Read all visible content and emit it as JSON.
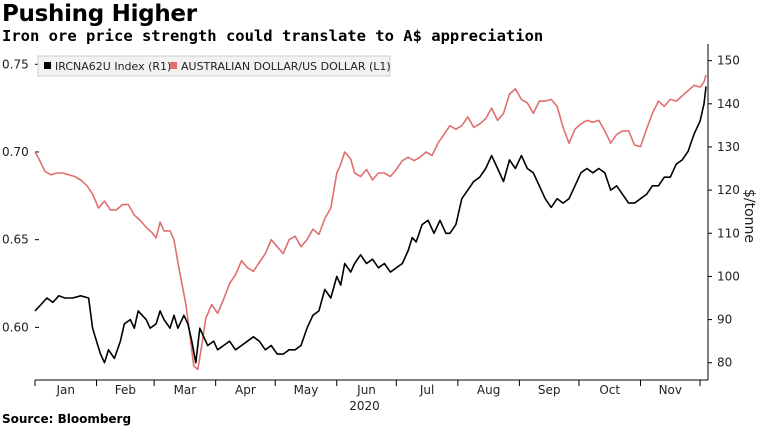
{
  "title": "Pushing Higher",
  "subtitle": "Iron ore price strength could translate to A$ appreciation",
  "source": "Source: Bloomberg",
  "colors": {
    "iron_ore": "#000000",
    "aud": "#e07070"
  },
  "chart_data": {
    "type": "line",
    "title": "Pushing Higher",
    "subtitle": "Iron ore price strength could translate to A$ appreciation",
    "xlabel": "2020",
    "months": [
      "Jan",
      "Feb",
      "Mar",
      "Apr",
      "May",
      "Jun",
      "Jul",
      "Aug",
      "Sep",
      "Oct",
      "Nov"
    ],
    "left_axis": {
      "ylim": [
        0.57,
        0.757
      ],
      "ticks": [
        "0.60",
        "0.65",
        "0.70",
        "0.75"
      ],
      "label": ""
    },
    "right_axis": {
      "ylim": [
        76,
        152
      ],
      "ticks": [
        "80",
        "90",
        "100",
        "110",
        "120",
        "130",
        "140",
        "150"
      ],
      "label": "$/tonne"
    },
    "grid": false,
    "legend_position": "top-left",
    "series": [
      {
        "name": "IRCNA62U Index (R1)",
        "axis": "right",
        "color": "#000000",
        "points": [
          [
            "2020-01-01",
            92
          ],
          [
            "2020-01-04",
            93.5
          ],
          [
            "2020-01-07",
            95
          ],
          [
            "2020-01-10",
            94
          ],
          [
            "2020-01-13",
            95.5
          ],
          [
            "2020-01-16",
            95
          ],
          [
            "2020-01-20",
            95
          ],
          [
            "2020-01-24",
            95.5
          ],
          [
            "2020-01-28",
            95
          ],
          [
            "2020-01-30",
            88
          ],
          [
            "2020-02-01",
            85
          ],
          [
            "2020-02-03",
            82
          ],
          [
            "2020-02-05",
            80
          ],
          [
            "2020-02-07",
            83
          ],
          [
            "2020-02-10",
            81
          ],
          [
            "2020-02-13",
            85
          ],
          [
            "2020-02-15",
            89
          ],
          [
            "2020-02-18",
            90
          ],
          [
            "2020-02-20",
            88
          ],
          [
            "2020-02-22",
            92
          ],
          [
            "2020-02-24",
            91
          ],
          [
            "2020-02-26",
            90
          ],
          [
            "2020-02-28",
            88
          ],
          [
            "2020-03-02",
            89
          ],
          [
            "2020-03-04",
            92
          ],
          [
            "2020-03-06",
            90
          ],
          [
            "2020-03-09",
            88
          ],
          [
            "2020-03-11",
            91
          ],
          [
            "2020-03-13",
            88
          ],
          [
            "2020-03-16",
            91
          ],
          [
            "2020-03-18",
            89
          ],
          [
            "2020-03-20",
            85
          ],
          [
            "2020-03-22",
            80
          ],
          [
            "2020-03-24",
            88
          ],
          [
            "2020-03-26",
            86
          ],
          [
            "2020-03-28",
            84
          ],
          [
            "2020-03-31",
            85
          ],
          [
            "2020-04-02",
            83
          ],
          [
            "2020-04-05",
            84
          ],
          [
            "2020-04-08",
            85
          ],
          [
            "2020-04-11",
            83
          ],
          [
            "2020-04-14",
            84
          ],
          [
            "2020-04-17",
            85
          ],
          [
            "2020-04-20",
            86
          ],
          [
            "2020-04-23",
            85
          ],
          [
            "2020-04-26",
            83
          ],
          [
            "2020-04-29",
            84
          ],
          [
            "2020-05-02",
            82
          ],
          [
            "2020-05-05",
            82
          ],
          [
            "2020-05-08",
            83
          ],
          [
            "2020-05-11",
            83
          ],
          [
            "2020-05-14",
            84
          ],
          [
            "2020-05-17",
            88
          ],
          [
            "2020-05-20",
            91
          ],
          [
            "2020-05-23",
            92
          ],
          [
            "2020-05-26",
            97
          ],
          [
            "2020-05-29",
            95
          ],
          [
            "2020-06-01",
            100
          ],
          [
            "2020-06-03",
            98
          ],
          [
            "2020-06-05",
            103
          ],
          [
            "2020-06-08",
            101
          ],
          [
            "2020-06-10",
            103
          ],
          [
            "2020-06-13",
            105
          ],
          [
            "2020-06-16",
            103
          ],
          [
            "2020-06-19",
            104
          ],
          [
            "2020-06-22",
            102
          ],
          [
            "2020-06-25",
            103
          ],
          [
            "2020-06-28",
            101
          ],
          [
            "2020-07-01",
            102
          ],
          [
            "2020-07-04",
            103
          ],
          [
            "2020-07-07",
            106
          ],
          [
            "2020-07-09",
            109
          ],
          [
            "2020-07-11",
            108
          ],
          [
            "2020-07-14",
            112
          ],
          [
            "2020-07-17",
            113
          ],
          [
            "2020-07-20",
            110
          ],
          [
            "2020-07-23",
            113
          ],
          [
            "2020-07-26",
            110
          ],
          [
            "2020-07-28",
            110
          ],
          [
            "2020-07-31",
            112
          ],
          [
            "2020-08-03",
            118
          ],
          [
            "2020-08-06",
            120
          ],
          [
            "2020-08-09",
            122
          ],
          [
            "2020-08-12",
            123
          ],
          [
            "2020-08-15",
            125
          ],
          [
            "2020-08-18",
            128
          ],
          [
            "2020-08-21",
            125
          ],
          [
            "2020-08-24",
            122
          ],
          [
            "2020-08-27",
            127
          ],
          [
            "2020-08-30",
            125
          ],
          [
            "2020-09-02",
            128
          ],
          [
            "2020-09-05",
            125
          ],
          [
            "2020-09-08",
            124
          ],
          [
            "2020-09-11",
            121
          ],
          [
            "2020-09-14",
            118
          ],
          [
            "2020-09-17",
            116
          ],
          [
            "2020-09-20",
            118
          ],
          [
            "2020-09-23",
            117
          ],
          [
            "2020-09-26",
            118
          ],
          [
            "2020-09-29",
            121
          ],
          [
            "2020-10-02",
            124
          ],
          [
            "2020-10-05",
            125
          ],
          [
            "2020-10-08",
            124
          ],
          [
            "2020-10-11",
            125
          ],
          [
            "2020-10-14",
            124
          ],
          [
            "2020-10-17",
            120
          ],
          [
            "2020-10-20",
            121
          ],
          [
            "2020-10-23",
            119
          ],
          [
            "2020-10-26",
            117
          ],
          [
            "2020-10-29",
            117
          ],
          [
            "2020-11-01",
            118
          ],
          [
            "2020-11-04",
            119
          ],
          [
            "2020-11-07",
            121
          ],
          [
            "2020-11-10",
            121
          ],
          [
            "2020-11-13",
            123
          ],
          [
            "2020-11-16",
            123
          ],
          [
            "2020-11-19",
            126
          ],
          [
            "2020-11-22",
            127
          ],
          [
            "2020-11-25",
            129
          ],
          [
            "2020-11-28",
            133
          ],
          [
            "2020-12-01",
            136
          ],
          [
            "2020-12-03",
            140
          ],
          [
            "2020-12-04",
            144
          ]
        ]
      },
      {
        "name": "AUSTRALIAN DOLLAR/US DOLLAR (L1)",
        "axis": "left",
        "color": "#e07070",
        "points": [
          [
            "2020-01-01",
            0.7
          ],
          [
            "2020-01-03",
            0.696
          ],
          [
            "2020-01-06",
            0.689
          ],
          [
            "2020-01-09",
            0.687
          ],
          [
            "2020-01-12",
            0.688
          ],
          [
            "2020-01-15",
            0.688
          ],
          [
            "2020-01-18",
            0.687
          ],
          [
            "2020-01-21",
            0.686
          ],
          [
            "2020-01-24",
            0.684
          ],
          [
            "2020-01-27",
            0.681
          ],
          [
            "2020-01-30",
            0.676
          ],
          [
            "2020-02-02",
            0.668
          ],
          [
            "2020-02-05",
            0.672
          ],
          [
            "2020-02-08",
            0.667
          ],
          [
            "2020-02-11",
            0.667
          ],
          [
            "2020-02-14",
            0.67
          ],
          [
            "2020-02-17",
            0.67
          ],
          [
            "2020-02-20",
            0.664
          ],
          [
            "2020-02-23",
            0.661
          ],
          [
            "2020-02-26",
            0.657
          ],
          [
            "2020-02-29",
            0.654
          ],
          [
            "2020-03-02",
            0.651
          ],
          [
            "2020-03-04",
            0.66
          ],
          [
            "2020-03-06",
            0.655
          ],
          [
            "2020-03-09",
            0.655
          ],
          [
            "2020-03-11",
            0.65
          ],
          [
            "2020-03-13",
            0.637
          ],
          [
            "2020-03-15",
            0.625
          ],
          [
            "2020-03-17",
            0.613
          ],
          [
            "2020-03-19",
            0.596
          ],
          [
            "2020-03-21",
            0.578
          ],
          [
            "2020-03-23",
            0.576
          ],
          [
            "2020-03-25",
            0.59
          ],
          [
            "2020-03-27",
            0.605
          ],
          [
            "2020-03-30",
            0.613
          ],
          [
            "2020-04-02",
            0.608
          ],
          [
            "2020-04-05",
            0.616
          ],
          [
            "2020-04-08",
            0.625
          ],
          [
            "2020-04-11",
            0.63
          ],
          [
            "2020-04-14",
            0.638
          ],
          [
            "2020-04-17",
            0.634
          ],
          [
            "2020-04-20",
            0.632
          ],
          [
            "2020-04-23",
            0.637
          ],
          [
            "2020-04-26",
            0.642
          ],
          [
            "2020-04-29",
            0.65
          ],
          [
            "2020-05-02",
            0.646
          ],
          [
            "2020-05-05",
            0.642
          ],
          [
            "2020-05-08",
            0.65
          ],
          [
            "2020-05-11",
            0.652
          ],
          [
            "2020-05-14",
            0.646
          ],
          [
            "2020-05-17",
            0.65
          ],
          [
            "2020-05-20",
            0.656
          ],
          [
            "2020-05-23",
            0.653
          ],
          [
            "2020-05-26",
            0.662
          ],
          [
            "2020-05-29",
            0.668
          ],
          [
            "2020-06-01",
            0.688
          ],
          [
            "2020-06-03",
            0.693
          ],
          [
            "2020-06-05",
            0.7
          ],
          [
            "2020-06-08",
            0.696
          ],
          [
            "2020-06-10",
            0.688
          ],
          [
            "2020-06-13",
            0.686
          ],
          [
            "2020-06-16",
            0.69
          ],
          [
            "2020-06-19",
            0.684
          ],
          [
            "2020-06-22",
            0.688
          ],
          [
            "2020-06-25",
            0.688
          ],
          [
            "2020-06-28",
            0.686
          ],
          [
            "2020-07-01",
            0.69
          ],
          [
            "2020-07-04",
            0.695
          ],
          [
            "2020-07-07",
            0.697
          ],
          [
            "2020-07-10",
            0.695
          ],
          [
            "2020-07-13",
            0.697
          ],
          [
            "2020-07-16",
            0.7
          ],
          [
            "2020-07-19",
            0.698
          ],
          [
            "2020-07-22",
            0.705
          ],
          [
            "2020-07-25",
            0.71
          ],
          [
            "2020-07-28",
            0.715
          ],
          [
            "2020-07-31",
            0.713
          ],
          [
            "2020-08-03",
            0.715
          ],
          [
            "2020-08-06",
            0.72
          ],
          [
            "2020-08-09",
            0.714
          ],
          [
            "2020-08-12",
            0.716
          ],
          [
            "2020-08-15",
            0.719
          ],
          [
            "2020-08-18",
            0.725
          ],
          [
            "2020-08-21",
            0.718
          ],
          [
            "2020-08-24",
            0.722
          ],
          [
            "2020-08-27",
            0.733
          ],
          [
            "2020-08-30",
            0.736
          ],
          [
            "2020-09-02",
            0.73
          ],
          [
            "2020-09-05",
            0.728
          ],
          [
            "2020-09-08",
            0.722
          ],
          [
            "2020-09-11",
            0.729
          ],
          [
            "2020-09-14",
            0.729
          ],
          [
            "2020-09-17",
            0.73
          ],
          [
            "2020-09-20",
            0.726
          ],
          [
            "2020-09-23",
            0.714
          ],
          [
            "2020-09-26",
            0.705
          ],
          [
            "2020-09-29",
            0.713
          ],
          [
            "2020-10-02",
            0.716
          ],
          [
            "2020-10-05",
            0.718
          ],
          [
            "2020-10-08",
            0.717
          ],
          [
            "2020-10-11",
            0.718
          ],
          [
            "2020-10-14",
            0.712
          ],
          [
            "2020-10-17",
            0.705
          ],
          [
            "2020-10-20",
            0.71
          ],
          [
            "2020-10-23",
            0.712
          ],
          [
            "2020-10-26",
            0.712
          ],
          [
            "2020-10-29",
            0.704
          ],
          [
            "2020-11-01",
            0.703
          ],
          [
            "2020-11-04",
            0.713
          ],
          [
            "2020-11-07",
            0.722
          ],
          [
            "2020-11-10",
            0.729
          ],
          [
            "2020-11-13",
            0.726
          ],
          [
            "2020-11-16",
            0.73
          ],
          [
            "2020-11-19",
            0.729
          ],
          [
            "2020-11-22",
            0.732
          ],
          [
            "2020-11-25",
            0.735
          ],
          [
            "2020-11-28",
            0.738
          ],
          [
            "2020-12-01",
            0.737
          ],
          [
            "2020-12-03",
            0.74
          ],
          [
            "2020-12-04",
            0.744
          ]
        ]
      }
    ]
  }
}
